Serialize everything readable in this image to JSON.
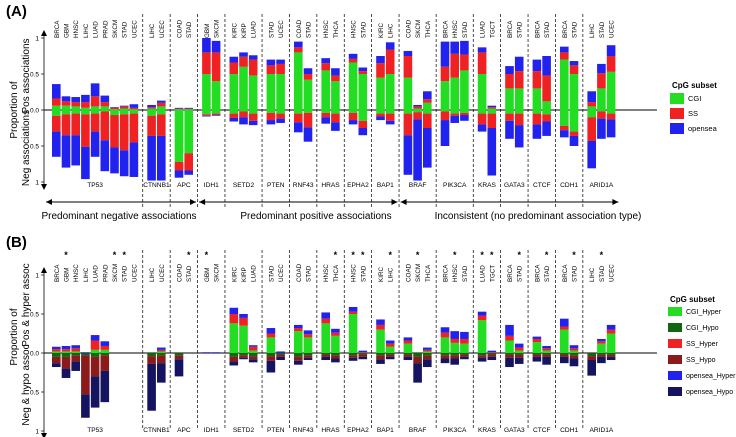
{
  "panel_a": {
    "tag": "(A)",
    "ylabel_top": [
      "Proportion of",
      "Pos associations"
    ],
    "ylabel_bottom": [
      "Neg associations"
    ],
    "ticks": [
      "1",
      "0.5",
      "0.0",
      "0.5",
      "1"
    ],
    "legend_title": "CpG subset",
    "legend": [
      {
        "label": "CGI",
        "color": "#22dd22"
      },
      {
        "label": "SS",
        "color": "#ee2222"
      },
      {
        "label": "opensea",
        "color": "#2222ee"
      }
    ],
    "groups": [
      {
        "name": "TP53",
        "cancers": [
          "BRCA",
          "GBM",
          "HNSC",
          "LIHC",
          "LUAD",
          "PRAD",
          "SKCM",
          "STAD",
          "UCEC"
        ]
      },
      {
        "name": "CTNNB1",
        "cancers": [
          "LIHC",
          "UCEC"
        ]
      },
      {
        "name": "APC",
        "cancers": [
          "COAD",
          "STAD"
        ]
      },
      {
        "name": "IDH1",
        "cancers": [
          "GBM",
          "SKCM"
        ]
      },
      {
        "name": "SETD2",
        "cancers": [
          "KIRC",
          "KIRP",
          "LUAD"
        ]
      },
      {
        "name": "PTEN",
        "cancers": [
          "STAD",
          "UCEC"
        ]
      },
      {
        "name": "RNF43",
        "cancers": [
          "COAD",
          "STAD"
        ]
      },
      {
        "name": "HRAS",
        "cancers": [
          "HNSC",
          "THCA"
        ]
      },
      {
        "name": "EPHA2",
        "cancers": [
          "HNSC",
          "STAD"
        ]
      },
      {
        "name": "BAP1",
        "cancers": [
          "KIRC",
          "LIHC"
        ]
      },
      {
        "name": "BRAF",
        "cancers": [
          "COAD",
          "SKCM",
          "THCA"
        ]
      },
      {
        "name": "PIK3CA",
        "cancers": [
          "BRCA",
          "HNSC",
          "STAD"
        ]
      },
      {
        "name": "KRAS",
        "cancers": [
          "LUAD",
          "TGCT"
        ]
      },
      {
        "name": "GATA3",
        "cancers": [
          "BRCA",
          "STAD"
        ]
      },
      {
        "name": "CTCF",
        "cancers": [
          "BRCA",
          "STAD"
        ]
      },
      {
        "name": "CDH1",
        "cancers": [
          "BRCA",
          "STAD"
        ]
      },
      {
        "name": "ARID1A",
        "cancers": [
          "LIHC",
          "STAD",
          "UCEC"
        ]
      }
    ],
    "categories": [
      {
        "label": "Predominant negative associations"
      },
      {
        "label": "Predominant positive associations"
      },
      {
        "label": "Inconsistent (no predominant association type)"
      }
    ]
  },
  "panel_b": {
    "tag": "(B)",
    "ylabel_top": [
      "Proportion of",
      "Pos & hyper assoc"
    ],
    "ylabel_bottom": [
      "Neg & hypo assoc"
    ],
    "ticks": [
      "1",
      "0.5",
      "0.0",
      "0.5",
      "1"
    ],
    "legend_title": "CpG subset",
    "legend": [
      {
        "label": "CGI_Hyper",
        "color": "#22dd22"
      },
      {
        "label": "CGI_Hypo",
        "color": "#116611"
      },
      {
        "label": "SS_Hyper",
        "color": "#ee2222"
      },
      {
        "label": "SS_Hypo",
        "color": "#8b1a1a"
      },
      {
        "label": "opensea_Hyper",
        "color": "#2222ee"
      },
      {
        "label": "opensea_Hypo",
        "color": "#141460"
      }
    ],
    "groups": [
      {
        "name": "TP53",
        "cancers": [
          "BRCA",
          "GBM",
          "HNSC",
          "LIHC",
          "LUAD",
          "PRAD",
          "SKCM",
          "STAD",
          "UCEC"
        ]
      },
      {
        "name": "CTNNB1",
        "cancers": [
          "LIHC",
          "UCEC"
        ]
      },
      {
        "name": "APC",
        "cancers": [
          "COAD",
          "STAD"
        ]
      },
      {
        "name": "IDH1",
        "cancers": [
          "GBM",
          "SKCM"
        ]
      },
      {
        "name": "SETD2",
        "cancers": [
          "KIRC",
          "KIRP",
          "LUAD"
        ]
      },
      {
        "name": "PTEN",
        "cancers": [
          "STAD",
          "UCEC"
        ]
      },
      {
        "name": "RNF43",
        "cancers": [
          "COAD",
          "STAD"
        ]
      },
      {
        "name": "HRAS",
        "cancers": [
          "HNSC",
          "THCA"
        ]
      },
      {
        "name": "EPHA2",
        "cancers": [
          "HNSC",
          "STAD"
        ]
      },
      {
        "name": "BAP1",
        "cancers": [
          "KIRC",
          "LIHC"
        ]
      },
      {
        "name": "BRAF",
        "cancers": [
          "COAD",
          "SKCM",
          "THCA"
        ]
      },
      {
        "name": "PIK3CA",
        "cancers": [
          "BRCA",
          "HNSC",
          "STAD"
        ]
      },
      {
        "name": "KRAS",
        "cancers": [
          "LUAD",
          "TGCT"
        ]
      },
      {
        "name": "GATA3",
        "cancers": [
          "BRCA",
          "STAD"
        ]
      },
      {
        "name": "CTCF",
        "cancers": [
          "BRCA",
          "STAD"
        ]
      },
      {
        "name": "CDH1",
        "cancers": [
          "BRCA",
          "STAD"
        ]
      },
      {
        "name": "ARID1A",
        "cancers": [
          "LIHC",
          "STAD",
          "UCEC"
        ]
      }
    ],
    "star": "*"
  },
  "chart_data": [
    {
      "type": "bar",
      "title": "(A)",
      "ylabel": "Proportion of Pos associations / Neg associations",
      "ylim": [
        -1,
        1
      ],
      "segments": [
        "CGI",
        "SS",
        "opensea"
      ],
      "bars_pos": [
        [
          0.06,
          0.1,
          0.2
        ],
        [
          0.06,
          0.06,
          0.07
        ],
        [
          0.05,
          0.06,
          0.07
        ],
        [
          0.03,
          0.08,
          0.1
        ],
        [
          0.05,
          0.14,
          0.18
        ],
        [
          0.05,
          0.06,
          0.09
        ],
        [
          0.01,
          0.02,
          0.01
        ],
        [
          0.02,
          0.03,
          0.01
        ],
        [
          0.01,
          0.02,
          0.05
        ],
        [
          0.02,
          0.02,
          0.03
        ],
        [
          0.05,
          0.05,
          0.03
        ],
        [
          0.01,
          0.01,
          0.01
        ],
        [
          0.01,
          0.01,
          0.01
        ],
        [
          0.5,
          0.3,
          0.2
        ],
        [
          0.4,
          0.4,
          0.16
        ],
        [
          0.5,
          0.16,
          0.08
        ],
        [
          0.6,
          0.14,
          0.06
        ],
        [
          0.48,
          0.22,
          0.06
        ],
        [
          0.5,
          0.12,
          0.08
        ],
        [
          0.5,
          0.14,
          0.06
        ],
        [
          0.8,
          0.07,
          0.08
        ],
        [
          0.42,
          0.08,
          0.08
        ],
        [
          0.55,
          0.1,
          0.07
        ],
        [
          0.4,
          0.08,
          0.1
        ],
        [
          0.66,
          0.05,
          0.07
        ],
        [
          0.5,
          0.04,
          0.05
        ],
        [
          0.45,
          0.2,
          0.1
        ],
        [
          0.5,
          0.34,
          0.1
        ],
        [
          0.45,
          0.3,
          0.07
        ],
        [
          0.02,
          0.03,
          0.02
        ],
        [
          0.1,
          0.05,
          0.11
        ],
        [
          0.4,
          0.2,
          0.35
        ],
        [
          0.45,
          0.33,
          0.17
        ],
        [
          0.55,
          0.22,
          0.19
        ],
        [
          0.5,
          0.3,
          0.07
        ],
        [
          0.02,
          0.02,
          0.02
        ],
        [
          0.3,
          0.2,
          0.11
        ],
        [
          0.3,
          0.24,
          0.2
        ],
        [
          0.3,
          0.24,
          0.16
        ],
        [
          0.12,
          0.36,
          0.27
        ],
        [
          0.7,
          0.1,
          0.08
        ],
        [
          0.5,
          0.12,
          0.06
        ],
        [
          0.05,
          0.06,
          0.15
        ],
        [
          0.3,
          0.21,
          0.13
        ],
        [
          0.53,
          0.22,
          0.15
        ]
      ],
      "bars_neg": [
        [
          0.08,
          0.22,
          0.35
        ],
        [
          0.06,
          0.29,
          0.45
        ],
        [
          0.05,
          0.3,
          0.42
        ],
        [
          0.06,
          0.45,
          0.45
        ],
        [
          0.05,
          0.25,
          0.35
        ],
        [
          0.02,
          0.4,
          0.43
        ],
        [
          0.07,
          0.45,
          0.36
        ],
        [
          0.06,
          0.5,
          0.36
        ],
        [
          0.05,
          0.4,
          0.48
        ],
        [
          0.08,
          0.28,
          0.62
        ],
        [
          0.06,
          0.3,
          0.62
        ],
        [
          0.72,
          0.12,
          0.1
        ],
        [
          0.6,
          0.24,
          0.06
        ],
        [
          0.06,
          0.02,
          0.01
        ],
        [
          0.05,
          0.02,
          0.01
        ],
        [
          0.05,
          0.06,
          0.05
        ],
        [
          0.02,
          0.08,
          0.1
        ],
        [
          0.05,
          0.1,
          0.06
        ],
        [
          0.04,
          0.1,
          0.06
        ],
        [
          0.05,
          0.07,
          0.06
        ],
        [
          0.05,
          0.12,
          0.14
        ],
        [
          0.04,
          0.2,
          0.2
        ],
        [
          0.04,
          0.06,
          0.09
        ],
        [
          0.05,
          0.12,
          0.12
        ],
        [
          0.04,
          0.1,
          0.06
        ],
        [
          0.15,
          0.1,
          0.1
        ],
        [
          0.05,
          0.04,
          0.05
        ],
        [
          0.05,
          0.1,
          0.05
        ],
        [
          0.05,
          0.3,
          0.55
        ],
        [
          0.03,
          0.1,
          0.85
        ],
        [
          0.05,
          0.2,
          0.55
        ],
        [
          0.02,
          0.12,
          0.36
        ],
        [
          0.05,
          0.03,
          0.1
        ],
        [
          0.04,
          0.03,
          0.08
        ],
        [
          0.05,
          0.15,
          0.1
        ],
        [
          0.05,
          0.2,
          0.66
        ],
        [
          0.05,
          0.1,
          0.25
        ],
        [
          0.05,
          0.16,
          0.31
        ],
        [
          0.05,
          0.15,
          0.2
        ],
        [
          0.06,
          0.1,
          0.2
        ],
        [
          0.22,
          0.06,
          0.1
        ],
        [
          0.3,
          0.06,
          0.14
        ],
        [
          0.1,
          0.33,
          0.38
        ],
        [
          0.02,
          0.1,
          0.28
        ],
        [
          0.05,
          0.08,
          0.25
        ]
      ]
    },
    {
      "type": "bar",
      "title": "(B)",
      "ylabel": "Proportion of Pos & hyper assoc / Neg & hypo assoc",
      "ylim": [
        -1,
        1
      ],
      "segments_pos": [
        "CGI_Hyper",
        "SS_Hyper",
        "opensea_Hyper"
      ],
      "segments_neg": [
        "CGI_Hypo",
        "SS_Hypo",
        "opensea_Hypo"
      ],
      "star_bars": [
        1,
        6,
        7,
        12,
        13,
        23,
        24,
        25,
        27,
        29,
        32,
        34,
        35,
        37,
        39,
        41,
        43
      ],
      "bars_pos": [
        [
          0.02,
          0.03,
          0.03
        ],
        [
          0.02,
          0.03,
          0.04
        ],
        [
          0.02,
          0.04,
          0.04
        ],
        [
          0,
          0,
          0.01
        ],
        [
          0.04,
          0.12,
          0.07
        ],
        [
          0.04,
          0.05,
          0.06
        ],
        [
          0,
          0,
          0
        ],
        [
          0,
          0,
          0
        ],
        [
          0,
          0,
          0
        ],
        [
          0,
          0,
          0
        ],
        [
          0.02,
          0.02,
          0.03
        ],
        [
          0,
          0,
          0
        ],
        [
          0,
          0,
          0
        ],
        [
          0,
          0,
          0.01
        ],
        [
          0,
          0,
          0.01
        ],
        [
          0.38,
          0.12,
          0.08
        ],
        [
          0.35,
          0.1,
          0.05
        ],
        [
          0.03,
          0.05,
          0.02
        ],
        [
          0.2,
          0.05,
          0.07
        ],
        [
          0,
          0,
          0.02
        ],
        [
          0.28,
          0.04,
          0.04
        ],
        [
          0.2,
          0.04,
          0.05
        ],
        [
          0.38,
          0.06,
          0.08
        ],
        [
          0.22,
          0.04,
          0.05
        ],
        [
          0.5,
          0.03,
          0.06
        ],
        [
          0,
          0.01,
          0.02
        ],
        [
          0.3,
          0.06,
          0.07
        ],
        [
          0.08,
          0.04,
          0.04
        ],
        [
          0.12,
          0.04,
          0.04
        ],
        [
          0,
          0,
          0
        ],
        [
          0.02,
          0.02,
          0.03
        ],
        [
          0.2,
          0.06,
          0.07
        ],
        [
          0.13,
          0.05,
          0.1
        ],
        [
          0.12,
          0.06,
          0.09
        ],
        [
          0.42,
          0.06,
          0.05
        ],
        [
          0,
          0.01,
          0.02
        ],
        [
          0.16,
          0.06,
          0.14
        ],
        [
          0.03,
          0.04,
          0.05
        ],
        [
          0.14,
          0.04,
          0.03
        ],
        [
          0.03,
          0.03,
          0.03
        ],
        [
          0.3,
          0.04,
          0.1
        ],
        [
          0.03,
          0.03,
          0.04
        ],
        [
          0,
          0,
          0
        ],
        [
          0.12,
          0.03,
          0.03
        ],
        [
          0.25,
          0.05,
          0.06
        ]
      ],
      "bars_neg": [
        [
          0.05,
          0.08,
          0.05
        ],
        [
          0.05,
          0.15,
          0.12
        ],
        [
          0.03,
          0.08,
          0.12
        ],
        [
          0.03,
          0.5,
          0.3
        ],
        [
          0.05,
          0.25,
          0.4
        ],
        [
          0.03,
          0.2,
          0.4
        ],
        [
          0,
          0,
          0
        ],
        [
          0,
          0,
          0
        ],
        [
          0,
          0,
          0
        ],
        [
          0.04,
          0.1,
          0.6
        ],
        [
          0.03,
          0.1,
          0.25
        ],
        [
          0.03,
          0.05,
          0.22
        ],
        [
          0,
          0,
          0
        ],
        [
          0,
          0,
          0
        ],
        [
          0,
          0,
          0
        ],
        [
          0.05,
          0.06,
          0.05
        ],
        [
          0.03,
          0.03,
          0.02
        ],
        [
          0.04,
          0.04,
          0.04
        ],
        [
          0.04,
          0.06,
          0.15
        ],
        [
          0.02,
          0.03,
          0.04
        ],
        [
          0.05,
          0.05,
          0.05
        ],
        [
          0.03,
          0.03,
          0.03
        ],
        [
          0.02,
          0.03,
          0.04
        ],
        [
          0.03,
          0.04,
          0.05
        ],
        [
          0.03,
          0.03,
          0.04
        ],
        [
          0.02,
          0.03,
          0.03
        ],
        [
          0.03,
          0.05,
          0.06
        ],
        [
          0.02,
          0.03,
          0.03
        ],
        [
          0.02,
          0.03,
          0.04
        ],
        [
          0.05,
          0.08,
          0.25
        ],
        [
          0.03,
          0.05,
          0.1
        ],
        [
          0.03,
          0.04,
          0.06
        ],
        [
          0.03,
          0.04,
          0.08
        ],
        [
          0.02,
          0.03,
          0.03
        ],
        [
          0.03,
          0.03,
          0.05
        ],
        [
          0.02,
          0.03,
          0.04
        ],
        [
          0.02,
          0.04,
          0.12
        ],
        [
          0.02,
          0.04,
          0.08
        ],
        [
          0.02,
          0.03,
          0.06
        ],
        [
          0.02,
          0.03,
          0.1
        ],
        [
          0.02,
          0.03,
          0.08
        ],
        [
          0.03,
          0.04,
          0.1
        ],
        [
          0.04,
          0.05,
          0.2
        ],
        [
          0.02,
          0.03,
          0.08
        ],
        [
          0.02,
          0.03,
          0.04
        ]
      ]
    }
  ]
}
